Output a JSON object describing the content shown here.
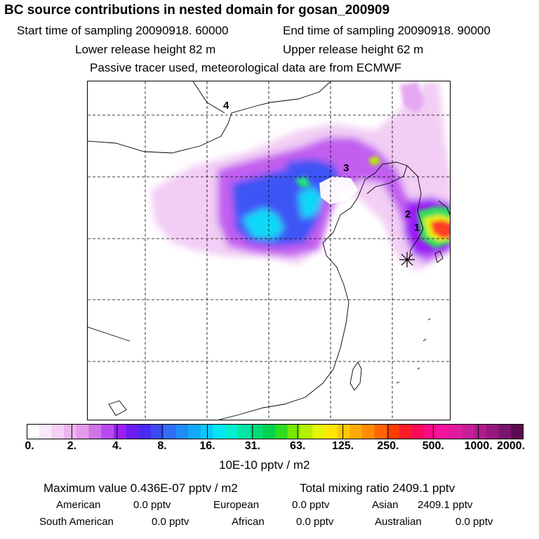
{
  "header": {
    "title": "BC  source contributions in nested domain for gosan_200909",
    "start_label": "Start time of sampling 20090918. 60000",
    "end_label": "End time of sampling 20090918. 90000",
    "lower_label": "Lower release height   82 m",
    "upper_label": "Upper release height   62 m",
    "tracer_note": "Passive tracer used, meteorological data are from ECMWF"
  },
  "map": {
    "markers": [
      "1",
      "2",
      "3",
      "4"
    ],
    "receptor_symbol": "star"
  },
  "colorbar": {
    "tick_labels": [
      "0.",
      "2.",
      "4.",
      "8.",
      "16.",
      "31.",
      "63.",
      "125.",
      "250.",
      "500.",
      "1000.",
      "2000."
    ],
    "colors": [
      "#ffffff",
      "#fce8fc",
      "#f5cff5",
      "#eeb4ee",
      "#e59be9",
      "#cf74e8",
      "#b84af0",
      "#9b1ff5",
      "#6f1cf5",
      "#4a2af5",
      "#3a4bf2",
      "#2f6ef5",
      "#1e8cf5",
      "#14a8f8",
      "#0ac8fa",
      "#00e6f0",
      "#00f0d0",
      "#00e6a8",
      "#00dc78",
      "#00d250",
      "#30dc20",
      "#78e600",
      "#b4f000",
      "#e6f500",
      "#ffe600",
      "#ffc800",
      "#ffaa00",
      "#ff8c00",
      "#ff6400",
      "#ff3c00",
      "#ff1e28",
      "#ff0a5a",
      "#ff0a8c",
      "#f5149e",
      "#e01aa0",
      "#c81e98",
      "#b01a8c",
      "#96187e",
      "#7a146c",
      "#5a0c50"
    ],
    "units": "10E-10 pptv / m2"
  },
  "stats": {
    "max_label": "Maximum value  0.436E-07 pptv / m2",
    "total_label": "Total mixing ratio     2409.1 pptv",
    "sources": [
      {
        "name": "American",
        "value": "0.0 pptv"
      },
      {
        "name": "European",
        "value": "0.0 pptv"
      },
      {
        "name": "Asian",
        "value": "2409.1 pptv"
      },
      {
        "name": "South American",
        "value": "0.0 pptv"
      },
      {
        "name": "African",
        "value": "0.0 pptv"
      },
      {
        "name": "Australian",
        "value": "0.0 pptv"
      }
    ]
  }
}
